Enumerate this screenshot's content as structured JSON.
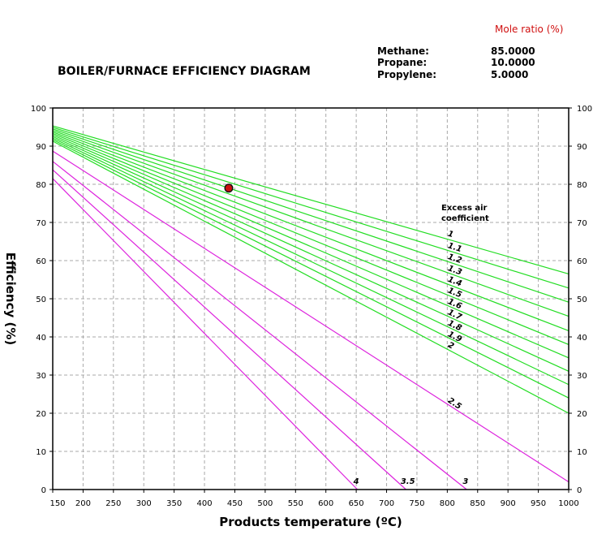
{
  "chart_data": {
    "type": "line",
    "title": "BOILER/FURNACE EFFICIENCY DIAGRAM",
    "xlabel": "Products temperature (ºC)",
    "ylabel": "Efficiency (%)",
    "xlim": [
      150,
      1000
    ],
    "ylim": [
      0,
      100
    ],
    "x_ticks": [
      "150",
      "200",
      "250",
      "300",
      "350",
      "400",
      "450",
      "500",
      "550",
      "600",
      "650",
      "700",
      "750",
      "800",
      "850",
      "900",
      "950",
      "1000"
    ],
    "y_ticks": [
      "0",
      "10",
      "20",
      "30",
      "40",
      "50",
      "60",
      "70",
      "80",
      "90",
      "100"
    ],
    "grid": true,
    "mole_ratio": {
      "header": "Mole ratio (%)",
      "items": [
        {
          "name": "Methane:",
          "value": "85.0000"
        },
        {
          "name": "Propane:",
          "value": "10.0000"
        },
        {
          "name": "Propylene:",
          "value": "5.0000"
        }
      ]
    },
    "excess_air_title_line1": "Excess air",
    "excess_air_title_line2": "coefficient",
    "green_color": "#22dd22",
    "magenta_color": "#dd22dd",
    "point_color": "#cc1111",
    "series": [
      {
        "name": "1",
        "color_key": "green",
        "x": [
          150,
          1000
        ],
        "y": [
          95.3,
          56.5
        ],
        "label_at": [
          800,
          66.5
        ]
      },
      {
        "name": "1.1",
        "color_key": "green",
        "x": [
          150,
          1000
        ],
        "y": [
          94.9,
          52.8
        ],
        "label_at": [
          800,
          63.4
        ]
      },
      {
        "name": "1.2",
        "color_key": "green",
        "x": [
          150,
          1000
        ],
        "y": [
          94.5,
          49.1
        ],
        "label_at": [
          800,
          60.5
        ]
      },
      {
        "name": "1.3",
        "color_key": "green",
        "x": [
          150,
          1000
        ],
        "y": [
          94.1,
          45.4
        ],
        "label_at": [
          800,
          57.5
        ]
      },
      {
        "name": "1.4",
        "color_key": "green",
        "x": [
          150,
          1000
        ],
        "y": [
          93.7,
          41.6
        ],
        "label_at": [
          800,
          54.6
        ]
      },
      {
        "name": "1.5",
        "color_key": "green",
        "x": [
          150,
          1000
        ],
        "y": [
          93.3,
          38.0
        ],
        "label_at": [
          800,
          51.7
        ]
      },
      {
        "name": "1.6",
        "color_key": "green",
        "x": [
          150,
          1000
        ],
        "y": [
          92.9,
          34.5
        ],
        "label_at": [
          800,
          48.8
        ]
      },
      {
        "name": "1.7",
        "color_key": "green",
        "x": [
          150,
          1000
        ],
        "y": [
          92.5,
          31.0
        ],
        "label_at": [
          800,
          46.0
        ]
      },
      {
        "name": "1.8",
        "color_key": "green",
        "x": [
          150,
          1000
        ],
        "y": [
          92.1,
          27.5
        ],
        "label_at": [
          800,
          43.2
        ]
      },
      {
        "name": "1.9",
        "color_key": "green",
        "x": [
          150,
          1000
        ],
        "y": [
          91.7,
          24.0
        ],
        "label_at": [
          800,
          40.3
        ]
      },
      {
        "name": "2",
        "color_key": "green",
        "x": [
          150,
          1000
        ],
        "y": [
          91.3,
          20.0
        ],
        "label_at": [
          800,
          37.5
        ]
      },
      {
        "name": "2.5",
        "color_key": "magenta",
        "x": [
          150,
          1000
        ],
        "y": [
          88.7,
          2.0
        ],
        "label_at": [
          800,
          23.0
        ]
      },
      {
        "name": "3",
        "color_key": "magenta",
        "x": [
          150,
          832
        ],
        "y": [
          86.0,
          0
        ],
        "label_at": [
          830,
          1.5
        ]
      },
      {
        "name": "3.5",
        "color_key": "magenta",
        "x": [
          150,
          732
        ],
        "y": [
          83.8,
          0
        ],
        "label_at": [
          735,
          1.5
        ]
      },
      {
        "name": "4",
        "color_key": "magenta",
        "x": [
          150,
          652
        ],
        "y": [
          81.5,
          0
        ],
        "label_at": [
          650,
          1.5
        ]
      }
    ],
    "points": [
      {
        "x": 440,
        "y": 79
      }
    ]
  }
}
